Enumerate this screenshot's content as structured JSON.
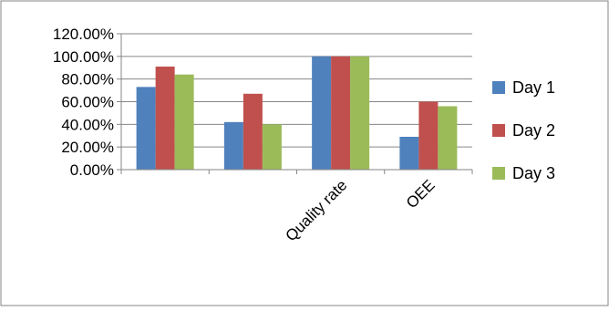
{
  "chart_data": {
    "type": "bar",
    "title": "",
    "xlabel": "",
    "ylabel": "",
    "categories": [
      "",
      "",
      "Quality rate",
      "OEE"
    ],
    "series": [
      {
        "name": "Day 1",
        "color": "#4f81bd",
        "values": [
          73,
          42,
          100,
          29
        ]
      },
      {
        "name": "Day 2",
        "color": "#c0504d",
        "values": [
          91,
          67,
          100,
          60
        ]
      },
      {
        "name": "Day 3",
        "color": "#9bbb59",
        "values": [
          84,
          40,
          100,
          56
        ]
      }
    ],
    "ylim": [
      0,
      120
    ],
    "yticks": [
      0,
      20,
      40,
      60,
      80,
      100,
      120
    ],
    "ytick_labels": [
      "0.00%",
      "20.00%",
      "40.00%",
      "60.00%",
      "80.00%",
      "100.00%",
      "120.00%"
    ],
    "grid": true,
    "legend": "right"
  }
}
